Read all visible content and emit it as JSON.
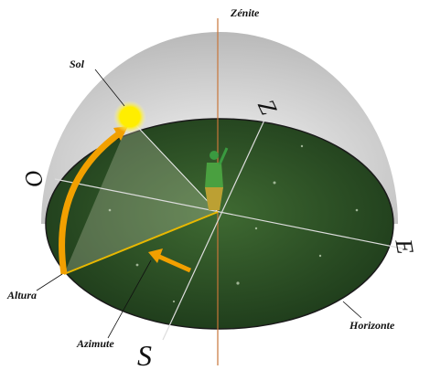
{
  "labels": {
    "zenith": "Zénite",
    "sun": "Sol",
    "north": "Z",
    "west": "O",
    "east": "E",
    "south": "S",
    "altitude": "Altura",
    "azimuth": "Azimute",
    "horizon": "Horizonte"
  }
}
